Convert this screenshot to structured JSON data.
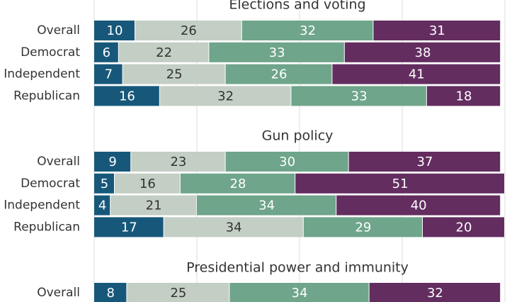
{
  "chart_data": [
    {
      "type": "bar",
      "orientation": "horizontal",
      "stacked": true,
      "title": "Elections and voting",
      "categories": [
        "Overall",
        "Democrat",
        "Independent",
        "Republican"
      ],
      "series": [
        {
          "values": [
            10,
            6,
            7,
            16
          ]
        },
        {
          "values": [
            26,
            22,
            25,
            32
          ]
        },
        {
          "values": [
            32,
            33,
            26,
            33
          ]
        },
        {
          "values": [
            31,
            38,
            41,
            18
          ]
        }
      ],
      "grid": true,
      "xlim": [
        0,
        100
      ]
    },
    {
      "type": "bar",
      "orientation": "horizontal",
      "stacked": true,
      "title": "Gun policy",
      "categories": [
        "Overall",
        "Democrat",
        "Independent",
        "Republican"
      ],
      "series": [
        {
          "values": [
            9,
            5,
            4,
            17
          ]
        },
        {
          "values": [
            23,
            16,
            21,
            34
          ]
        },
        {
          "values": [
            30,
            28,
            34,
            29
          ]
        },
        {
          "values": [
            37,
            51,
            40,
            20
          ]
        }
      ],
      "grid": true,
      "xlim": [
        0,
        100
      ]
    },
    {
      "type": "bar",
      "orientation": "horizontal",
      "stacked": true,
      "title": "Presidential power and immunity",
      "categories": [
        "Overall"
      ],
      "series": [
        {
          "values": [
            8
          ]
        },
        {
          "values": [
            25
          ]
        },
        {
          "values": [
            34
          ]
        },
        {
          "values": [
            32
          ]
        }
      ],
      "grid": true,
      "xlim": [
        0,
        100
      ]
    }
  ],
  "colors": {
    "series": [
      "#17587a",
      "#c3cec5",
      "#6fa58a",
      "#632d60"
    ],
    "label_on_dark": "#ffffff",
    "label_on_light": "#333333",
    "grid": "#dddddd"
  }
}
